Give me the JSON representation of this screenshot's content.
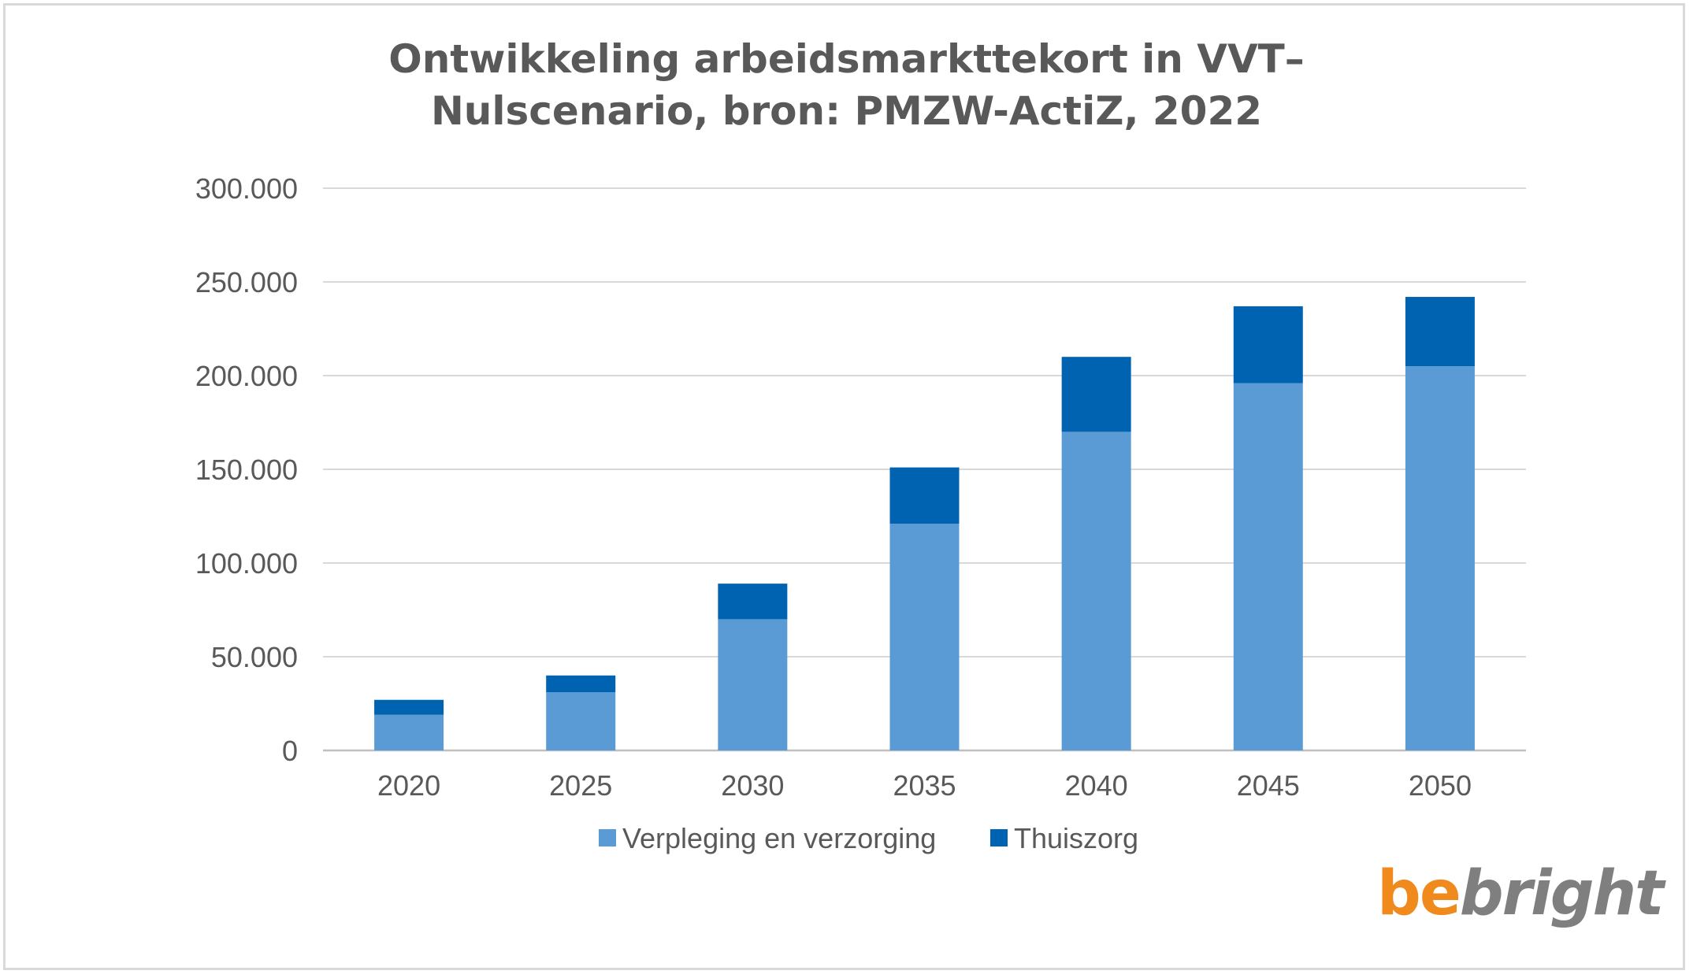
{
  "chart_data": {
    "type": "bar",
    "stacked": true,
    "title_lines": [
      "Ontwikkeling arbeidsmarkttekort in VVT–",
      "Nulscenario, bron: PMZW-ActiZ, 2022"
    ],
    "categories": [
      "2020",
      "2025",
      "2030",
      "2035",
      "2040",
      "2045",
      "2050"
    ],
    "series": [
      {
        "name": "Verpleging en verzorging",
        "color": "#5b9bd5",
        "values": [
          19000,
          31000,
          70000,
          121000,
          170000,
          196000,
          205000
        ]
      },
      {
        "name": "Thuiszorg",
        "color": "#0063b1",
        "values": [
          8000,
          9000,
          19000,
          30000,
          40000,
          41000,
          37000
        ]
      }
    ],
    "ylim": [
      0,
      300000
    ],
    "yticks": [
      0,
      50000,
      100000,
      150000,
      200000,
      250000,
      300000
    ],
    "ytick_labels": [
      "0",
      "50.000",
      "100.000",
      "150.000",
      "200.000",
      "250.000",
      "300.000"
    ],
    "grid": true,
    "legend_position": "bottom"
  },
  "logo": {
    "be": "be",
    "bright": "bright"
  }
}
